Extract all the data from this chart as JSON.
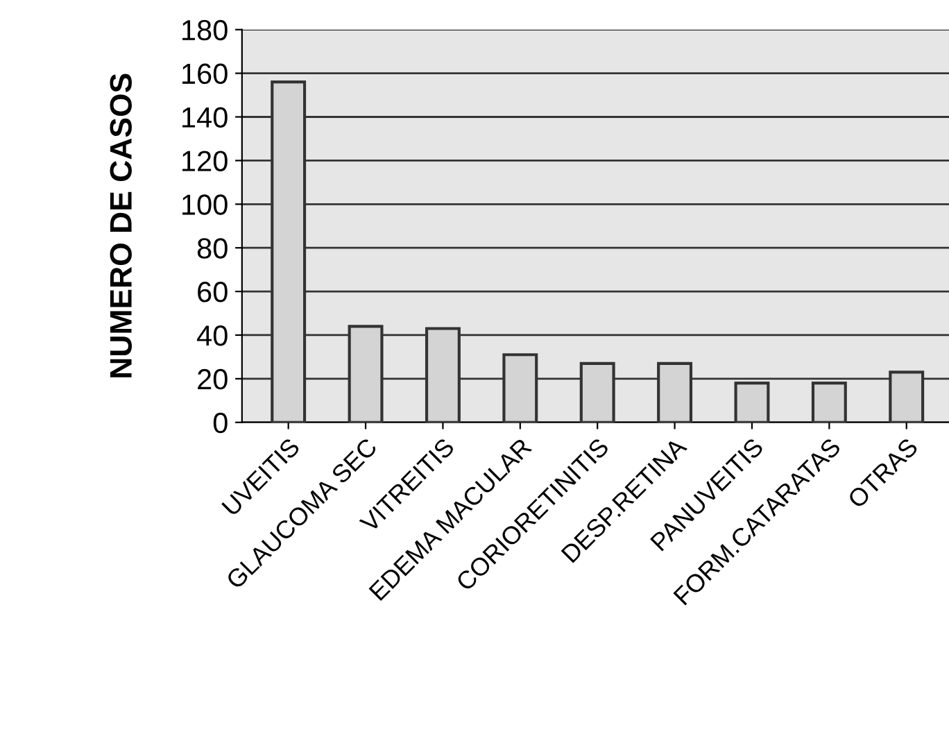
{
  "chart_data": {
    "type": "bar",
    "ylabel": "NUMERO DE CASOS",
    "categories": [
      "UVEITIS",
      "GLAUCOMA SEC",
      "VITREITIS",
      "EDEMA MACULAR",
      "CORIORETINITIS",
      "DESP.RETINA",
      "PANUVEITIS",
      "FORM.CATARATAS",
      "OTRAS"
    ],
    "values": [
      156,
      44,
      43,
      31,
      27,
      27,
      18,
      18,
      23
    ],
    "color": "#d4d4d4",
    "ylim": [
      0,
      180
    ],
    "yticks": [
      0,
      20,
      40,
      60,
      80,
      100,
      120,
      140,
      160,
      180
    ],
    "grid": "y"
  }
}
